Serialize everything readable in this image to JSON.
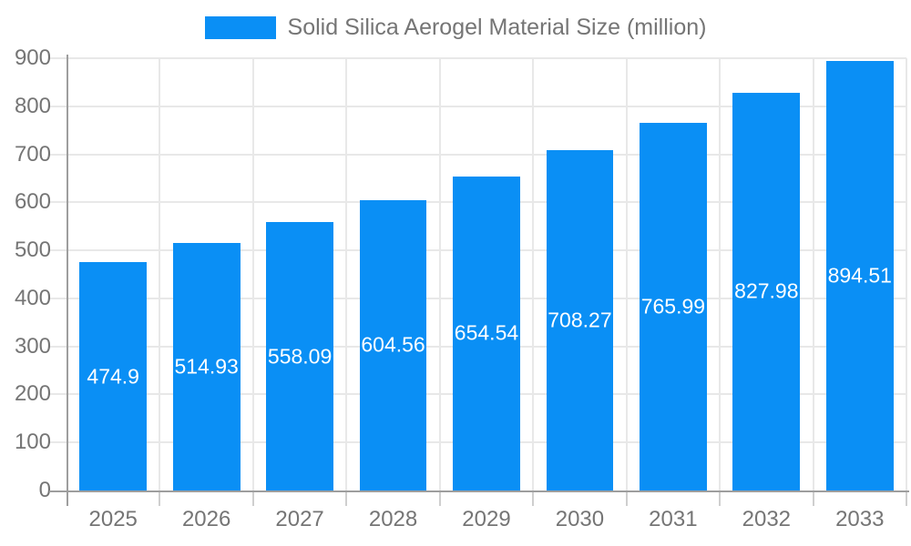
{
  "chart_data": {
    "type": "bar",
    "title": "Solid Silica Aerogel Material Size (million)",
    "series_name": "Solid Silica Aerogel Material Size (million)",
    "categories": [
      "2025",
      "2026",
      "2027",
      "2028",
      "2029",
      "2030",
      "2031",
      "2032",
      "2033"
    ],
    "values": [
      474.9,
      514.93,
      558.09,
      604.56,
      654.54,
      708.27,
      765.99,
      827.98,
      894.51
    ],
    "xlabel": "",
    "ylabel": "",
    "ylim": [
      0,
      900
    ],
    "ytick_step": 100,
    "yticks": [
      0,
      100,
      200,
      300,
      400,
      500,
      600,
      700,
      800,
      900
    ],
    "grid": true,
    "legend_position": "top-center",
    "bar_color": "#0a8ff5",
    "bar_label_color": "#ffffff",
    "axis_text_color": "#757575",
    "axis_line_color": "#9e9e9e",
    "grid_color": "#e8e8e8",
    "tick_color": "#cfcfcf",
    "background_color": "#ffffff"
  }
}
